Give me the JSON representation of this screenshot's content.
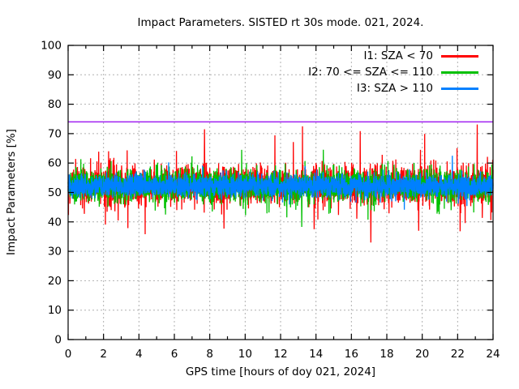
{
  "chart_data": {
    "type": "line",
    "title": "Impact Parameters. SISTED rt 30s mode. 021, 2024.",
    "xlabel": "GPS time [hours of doy 021, 2024]",
    "ylabel": "Impact Parameters [%]",
    "xlim": [
      0,
      24
    ],
    "ylim": [
      0,
      100
    ],
    "xticks_major": [
      0,
      2,
      4,
      6,
      8,
      10,
      12,
      14,
      16,
      18,
      20,
      22,
      24
    ],
    "xticks_minor": [
      1,
      3,
      5,
      7,
      9,
      11,
      13,
      15,
      17,
      19,
      21,
      23
    ],
    "yticks": [
      0,
      10,
      20,
      30,
      40,
      50,
      60,
      70,
      80,
      90,
      100
    ],
    "grid": {
      "shown": true,
      "style": "dashed",
      "color": "#b0b0b0"
    },
    "legend_position": "top-right-inside",
    "reference_line": {
      "y": 74,
      "color": "#a020f0"
    },
    "sample_interval_seconds": 30,
    "points_per_series": 2880,
    "series": [
      {
        "name": "I1: SZA < 70",
        "color": "#ff0000",
        "mean": 52.4,
        "std": 3.2,
        "typical_range": [
          41,
          64
        ],
        "spikes": [
          {
            "x": 7.7,
            "y": 71.5
          },
          {
            "x": 8.8,
            "y": 37.7
          },
          {
            "x": 13.9,
            "y": 37.5
          },
          {
            "x": 17.1,
            "y": 33.0
          },
          {
            "x": 19.8,
            "y": 37.0
          },
          {
            "x": 19.9,
            "y": 64.5
          }
        ]
      },
      {
        "name": "I2: 70 <= SZA <= 110",
        "color": "#00c000",
        "mean": 52.4,
        "std": 2.6,
        "typical_range": [
          44,
          62
        ],
        "spikes": [
          {
            "x": 5.5,
            "y": 42.5
          },
          {
            "x": 9.8,
            "y": 64.5
          },
          {
            "x": 13.2,
            "y": 38.3
          }
        ]
      },
      {
        "name": "I3: SZA > 110",
        "color": "#0080ff",
        "mean": 52.2,
        "std": 1.9,
        "typical_range": [
          47,
          58
        ],
        "spikes": [
          {
            "x": 21.7,
            "y": 62.5
          }
        ]
      }
    ],
    "render": {
      "seed": 21,
      "draw_order": [
        0,
        1,
        2
      ],
      "tails": [
        {
          "prob": 0.05,
          "scale": 2.2
        },
        {
          "prob": 0.04,
          "scale": 2.0
        },
        {
          "prob": 0.02,
          "scale": 1.6
        }
      ]
    }
  }
}
